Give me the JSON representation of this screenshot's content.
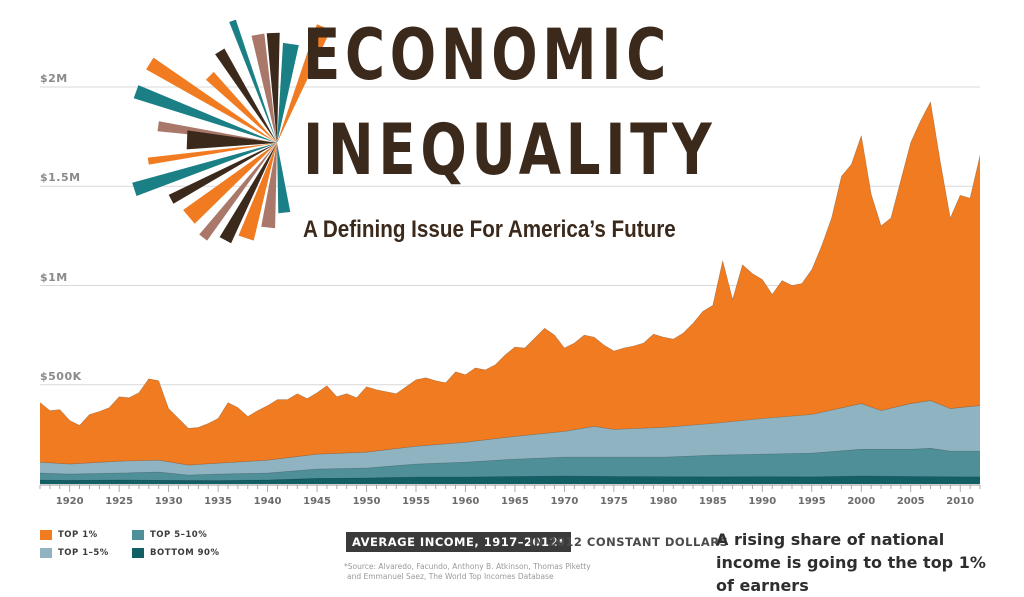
{
  "title_line1": "ECONOMIC",
  "title_line2": "INEQUALITY",
  "subtitle": "A Defining Issue For America’s Future",
  "avg_label": "AVERAGE INCOME, 1917–2012*",
  "avg_units": "IN 2012 CONSTANT DOLLARS",
  "source_line1": "*Source: Alvaredo, Facundo, Anthony B. Atkinson, Thomas Piketty",
  "source_line2": "and Emmanuel Saez, The World Top Incomes Database",
  "rising_text": "A rising share of national income is going to the top 1% of earners",
  "colors": {
    "top1": "#f07b21",
    "top1_5": "#8fb3c1",
    "top5_10": "#4f8f97",
    "bottom90": "#135f66",
    "burst": [
      "#f07b21",
      "#1b7f86",
      "#3b2a1c",
      "#a9786a"
    ]
  },
  "legend": [
    {
      "label": "TOP 1%",
      "color": "#f07b21"
    },
    {
      "label": "TOP 1–5%",
      "color": "#8fb3c1"
    },
    {
      "label": "TOP 5–10%",
      "color": "#4f8f97"
    },
    {
      "label": "BOTTOM 90%",
      "color": "#135f66"
    }
  ],
  "chart_data": {
    "type": "area",
    "stacked": false,
    "title": "ECONOMIC INEQUALITY",
    "subtitle": "A Defining Issue For America’s Future",
    "xlabel": "",
    "ylabel": "",
    "xlim": [
      1917,
      2012
    ],
    "ylim": [
      0,
      2200000
    ],
    "grid": true,
    "legend_position": "bottom-left",
    "y_ticks": [
      {
        "value": 500000,
        "label": "$500K"
      },
      {
        "value": 1000000,
        "label": "$1M"
      },
      {
        "value": 1500000,
        "label": "$1.5M"
      },
      {
        "value": 2000000,
        "label": "$2M"
      }
    ],
    "x_ticks": [
      1920,
      1925,
      1930,
      1935,
      1940,
      1945,
      1950,
      1955,
      1960,
      1965,
      1970,
      1975,
      1980,
      1985,
      1990,
      1995,
      2000,
      2005,
      2010
    ],
    "series": [
      {
        "name": "TOP 1%",
        "color": "#f07b21",
        "points": [
          [
            1917,
            410000
          ],
          [
            1918,
            370000
          ],
          [
            1919,
            375000
          ],
          [
            1920,
            320000
          ],
          [
            1921,
            295000
          ],
          [
            1922,
            350000
          ],
          [
            1923,
            365000
          ],
          [
            1924,
            385000
          ],
          [
            1925,
            440000
          ],
          [
            1926,
            435000
          ],
          [
            1927,
            460000
          ],
          [
            1928,
            530000
          ],
          [
            1929,
            520000
          ],
          [
            1930,
            380000
          ],
          [
            1931,
            330000
          ],
          [
            1932,
            280000
          ],
          [
            1933,
            285000
          ],
          [
            1934,
            305000
          ],
          [
            1935,
            330000
          ],
          [
            1936,
            410000
          ],
          [
            1937,
            385000
          ],
          [
            1938,
            340000
          ],
          [
            1939,
            370000
          ],
          [
            1940,
            395000
          ],
          [
            1941,
            425000
          ],
          [
            1942,
            425000
          ],
          [
            1943,
            455000
          ],
          [
            1944,
            430000
          ],
          [
            1945,
            460000
          ],
          [
            1946,
            495000
          ],
          [
            1947,
            440000
          ],
          [
            1948,
            455000
          ],
          [
            1949,
            435000
          ],
          [
            1950,
            490000
          ],
          [
            1951,
            475000
          ],
          [
            1952,
            465000
          ],
          [
            1953,
            455000
          ],
          [
            1954,
            490000
          ],
          [
            1955,
            525000
          ],
          [
            1956,
            535000
          ],
          [
            1957,
            520000
          ],
          [
            1958,
            510000
          ],
          [
            1959,
            565000
          ],
          [
            1960,
            550000
          ],
          [
            1961,
            585000
          ],
          [
            1962,
            575000
          ],
          [
            1963,
            600000
          ],
          [
            1964,
            650000
          ],
          [
            1965,
            690000
          ],
          [
            1966,
            685000
          ],
          [
            1967,
            735000
          ],
          [
            1968,
            785000
          ],
          [
            1969,
            750000
          ],
          [
            1970,
            685000
          ],
          [
            1971,
            710000
          ],
          [
            1972,
            750000
          ],
          [
            1973,
            740000
          ],
          [
            1974,
            700000
          ],
          [
            1975,
            670000
          ],
          [
            1976,
            685000
          ],
          [
            1977,
            695000
          ],
          [
            1978,
            710000
          ],
          [
            1979,
            755000
          ],
          [
            1980,
            740000
          ],
          [
            1981,
            730000
          ],
          [
            1982,
            760000
          ],
          [
            1983,
            810000
          ],
          [
            1984,
            870000
          ],
          [
            1985,
            900000
          ],
          [
            1986,
            1125000
          ],
          [
            1987,
            930000
          ],
          [
            1988,
            1105000
          ],
          [
            1989,
            1060000
          ],
          [
            1990,
            1030000
          ],
          [
            1991,
            955000
          ],
          [
            1992,
            1025000
          ],
          [
            1993,
            1000000
          ],
          [
            1994,
            1010000
          ],
          [
            1995,
            1080000
          ],
          [
            1996,
            1200000
          ],
          [
            1997,
            1340000
          ],
          [
            1998,
            1550000
          ],
          [
            1999,
            1610000
          ],
          [
            2000,
            1755000
          ],
          [
            2001,
            1460000
          ],
          [
            2002,
            1300000
          ],
          [
            2003,
            1340000
          ],
          [
            2004,
            1530000
          ],
          [
            2005,
            1720000
          ],
          [
            2006,
            1830000
          ],
          [
            2007,
            1925000
          ],
          [
            2008,
            1620000
          ],
          [
            2009,
            1340000
          ],
          [
            2010,
            1455000
          ],
          [
            2011,
            1440000
          ],
          [
            2012,
            1655000
          ]
        ]
      },
      {
        "name": "TOP 1–5%",
        "color": "#8fb3c1",
        "points": [
          [
            1917,
            110000
          ],
          [
            1920,
            100000
          ],
          [
            1925,
            115000
          ],
          [
            1929,
            120000
          ],
          [
            1932,
            95000
          ],
          [
            1935,
            105000
          ],
          [
            1940,
            120000
          ],
          [
            1945,
            150000
          ],
          [
            1950,
            160000
          ],
          [
            1955,
            190000
          ],
          [
            1960,
            210000
          ],
          [
            1965,
            240000
          ],
          [
            1970,
            265000
          ],
          [
            1973,
            290000
          ],
          [
            1975,
            275000
          ],
          [
            1980,
            285000
          ],
          [
            1985,
            305000
          ],
          [
            1990,
            330000
          ],
          [
            1995,
            350000
          ],
          [
            2000,
            405000
          ],
          [
            2002,
            370000
          ],
          [
            2005,
            405000
          ],
          [
            2007,
            420000
          ],
          [
            2009,
            380000
          ],
          [
            2012,
            395000
          ]
        ]
      },
      {
        "name": "TOP 5–10%",
        "color": "#4f8f97",
        "points": [
          [
            1917,
            55000
          ],
          [
            1920,
            50000
          ],
          [
            1925,
            55000
          ],
          [
            1929,
            60000
          ],
          [
            1932,
            45000
          ],
          [
            1935,
            50000
          ],
          [
            1940,
            55000
          ],
          [
            1945,
            75000
          ],
          [
            1950,
            80000
          ],
          [
            1955,
            100000
          ],
          [
            1960,
            110000
          ],
          [
            1965,
            125000
          ],
          [
            1970,
            135000
          ],
          [
            1975,
            135000
          ],
          [
            1980,
            135000
          ],
          [
            1985,
            145000
          ],
          [
            1990,
            150000
          ],
          [
            1995,
            155000
          ],
          [
            2000,
            175000
          ],
          [
            2005,
            175000
          ],
          [
            2007,
            180000
          ],
          [
            2009,
            165000
          ],
          [
            2012,
            165000
          ]
        ]
      },
      {
        "name": "BOTTOM 90%",
        "color": "#135f66",
        "points": [
          [
            1917,
            20000
          ],
          [
            1920,
            18000
          ],
          [
            1925,
            20000
          ],
          [
            1930,
            18000
          ],
          [
            1935,
            17000
          ],
          [
            1940,
            20000
          ],
          [
            1945,
            28000
          ],
          [
            1950,
            30000
          ],
          [
            1955,
            35000
          ],
          [
            1960,
            35000
          ],
          [
            1965,
            38000
          ],
          [
            1970,
            40000
          ],
          [
            1975,
            38000
          ],
          [
            1980,
            37000
          ],
          [
            1985,
            36000
          ],
          [
            1990,
            37000
          ],
          [
            1995,
            36000
          ],
          [
            2000,
            40000
          ],
          [
            2005,
            38000
          ],
          [
            2010,
            36000
          ],
          [
            2012,
            36000
          ]
        ]
      }
    ]
  }
}
